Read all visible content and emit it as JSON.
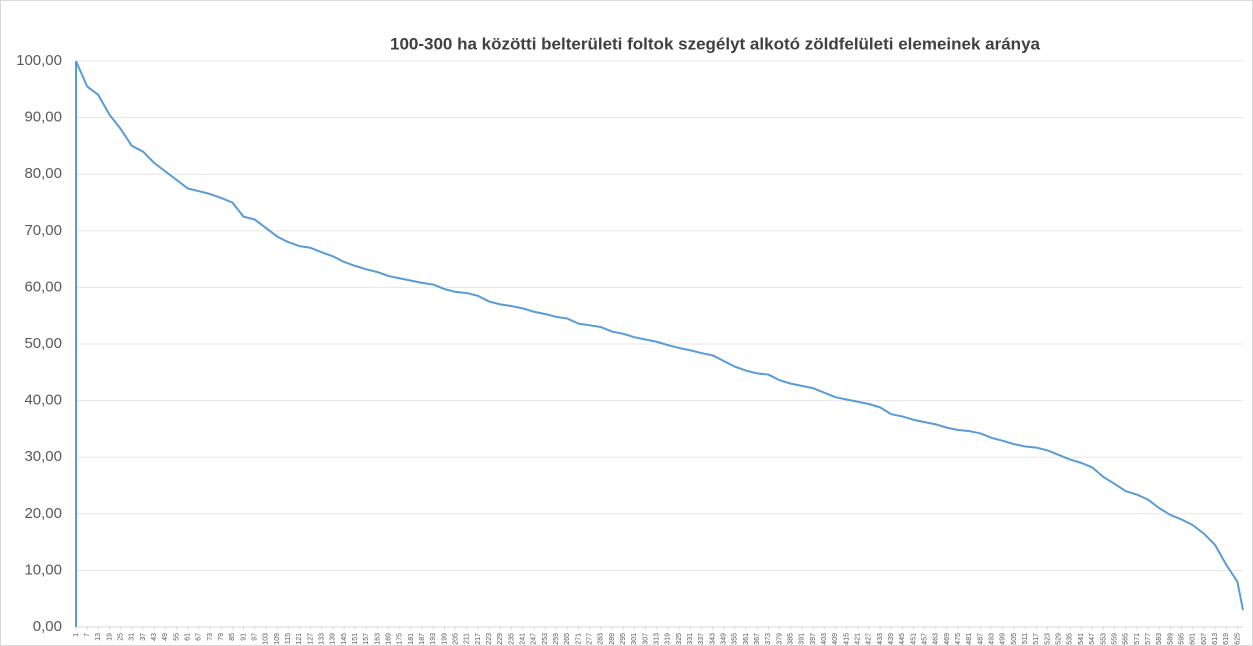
{
  "chart_data": {
    "type": "line",
    "title": "100-300 ha közötti belterületi foltok szegélyt alkotó zöldfelületi elemeinek aránya",
    "x": [
      1,
      7,
      13,
      19,
      25,
      31,
      37,
      43,
      49,
      55,
      61,
      67,
      73,
      79,
      85,
      91,
      97,
      103,
      109,
      115,
      121,
      127,
      133,
      139,
      145,
      151,
      157,
      163,
      169,
      175,
      181,
      187,
      193,
      199,
      205,
      211,
      217,
      223,
      229,
      235,
      241,
      247,
      253,
      259,
      265,
      271,
      277,
      283,
      289,
      295,
      301,
      307,
      313,
      319,
      325,
      331,
      337,
      343,
      349,
      355,
      361,
      367,
      373,
      379,
      385,
      391,
      397,
      403,
      409,
      415,
      421,
      427,
      433,
      439,
      445,
      451,
      457,
      463,
      469,
      475,
      481,
      487,
      493,
      499,
      505,
      511,
      517,
      523,
      529,
      535,
      541,
      547,
      553,
      559,
      565,
      571,
      577,
      583,
      589,
      595,
      601,
      607,
      613,
      619,
      625,
      628
    ],
    "series": [
      {
        "color": "#5b9bd5",
        "values": [
          100,
          95.5,
          94,
          90.5,
          88,
          85,
          84,
          82,
          80.5,
          79,
          77.5,
          77,
          76.5,
          75.8,
          75,
          72.5,
          72,
          70.5,
          69,
          68,
          67.3,
          67,
          66.2,
          65.5,
          64.5,
          63.8,
          63.2,
          62.7,
          62,
          61.6,
          61.2,
          60.8,
          60.5,
          59.7,
          59.2,
          59,
          58.5,
          57.5,
          57,
          56.7,
          56.3,
          55.7,
          55.3,
          54.8,
          54.5,
          53.6,
          53.3,
          53,
          52.2,
          51.8,
          51.2,
          50.8,
          50.4,
          49.8,
          49.3,
          48.9,
          48.4,
          48,
          47,
          46,
          45.3,
          44.8,
          44.6,
          43.6,
          43,
          42.6,
          42.2,
          41.4,
          40.6,
          40.2,
          39.8,
          39.4,
          38.8,
          37.6,
          37.2,
          36.6,
          36.2,
          35.8,
          35.2,
          34.8,
          34.6,
          34.2,
          33.4,
          32.9,
          32.3,
          31.9,
          31.7,
          31.2,
          30.4,
          29.6,
          29,
          28.2,
          26.5,
          25.3,
          24,
          23.4,
          22.5,
          21,
          19.8,
          19,
          18,
          16.5,
          14.5,
          11,
          8,
          3
        ]
      }
    ],
    "xlim": [
      1,
      628
    ],
    "xticks": [
      1,
      7,
      13,
      19,
      25,
      31,
      37,
      43,
      49,
      55,
      61,
      67,
      73,
      79,
      85,
      91,
      97,
      103,
      109,
      115,
      121,
      127,
      133,
      139,
      145,
      151,
      157,
      163,
      169,
      175,
      181,
      187,
      193,
      199,
      205,
      211,
      217,
      223,
      229,
      235,
      241,
      247,
      253,
      259,
      265,
      271,
      277,
      283,
      289,
      295,
      301,
      307,
      313,
      319,
      325,
      331,
      337,
      343,
      349,
      355,
      361,
      367,
      373,
      379,
      385,
      391,
      397,
      403,
      409,
      415,
      421,
      427,
      433,
      439,
      445,
      451,
      457,
      463,
      469,
      475,
      481,
      487,
      493,
      499,
      505,
      511,
      517,
      523,
      529,
      535,
      541,
      547,
      553,
      559,
      565,
      571,
      577,
      583,
      589,
      595,
      601,
      607,
      613,
      619,
      625
    ],
    "ylim": [
      0,
      100
    ],
    "yticks": [
      {
        "value": 0,
        "label": "0,00"
      },
      {
        "value": 10,
        "label": "10,00"
      },
      {
        "value": 20,
        "label": "20,00"
      },
      {
        "value": 30,
        "label": "30,00"
      },
      {
        "value": 40,
        "label": "40,00"
      },
      {
        "value": 50,
        "label": "50,00"
      },
      {
        "value": 60,
        "label": "60,00"
      },
      {
        "value": 70,
        "label": "70,00"
      },
      {
        "value": 80,
        "label": "80,00"
      },
      {
        "value": 90,
        "label": "90,00"
      },
      {
        "value": 100,
        "label": "100,00"
      }
    ],
    "grid": true
  }
}
